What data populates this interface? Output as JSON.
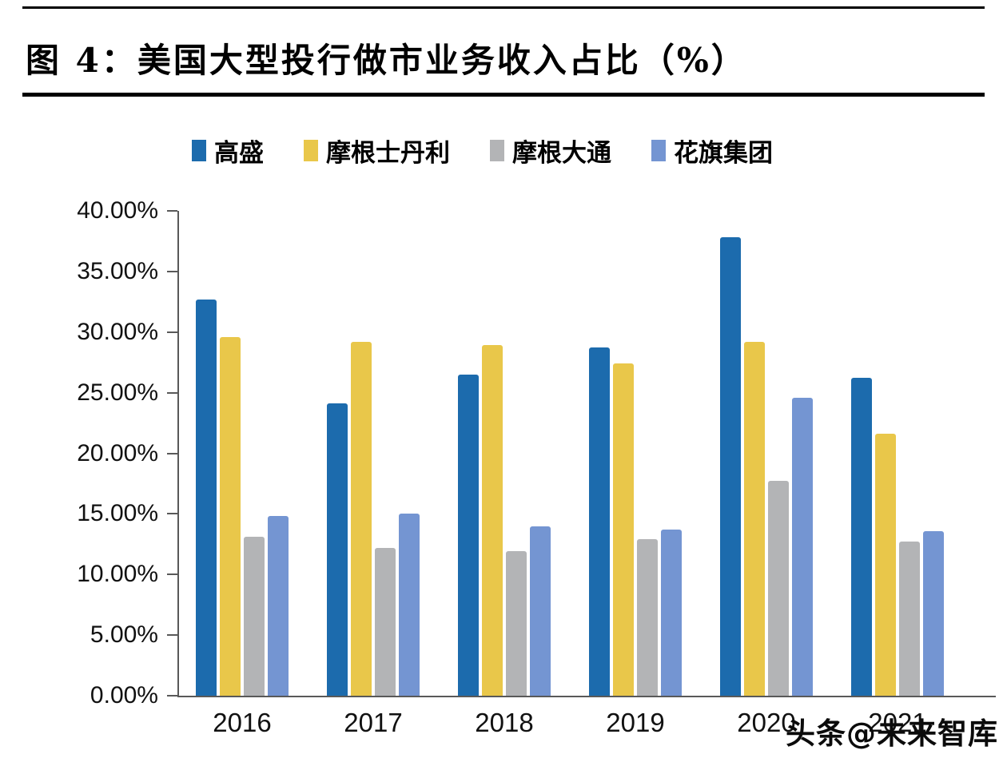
{
  "page": {
    "title": "图 4：美国大型投行做市业务收入占比（%）",
    "watermark": "头条@未来智库"
  },
  "chart_data": {
    "type": "bar",
    "title": "美国大型投行做市业务收入占比（%）",
    "categories": [
      "2016",
      "2017",
      "2018",
      "2019",
      "2020",
      "2021"
    ],
    "series": [
      {
        "name": "高盛",
        "color": "#1c6bad",
        "values": [
          32.7,
          24.1,
          26.5,
          28.7,
          37.8,
          26.2
        ]
      },
      {
        "name": "摩根士丹利",
        "color": "#e9c74a",
        "values": [
          29.6,
          29.2,
          28.9,
          27.4,
          29.2,
          21.6
        ]
      },
      {
        "name": "摩根大通",
        "color": "#b3b4b6",
        "values": [
          13.1,
          12.2,
          11.9,
          12.9,
          17.7,
          12.7
        ]
      },
      {
        "name": "花旗集团",
        "color": "#7495d2",
        "values": [
          14.8,
          15.0,
          14.0,
          13.7,
          24.6,
          13.6
        ]
      }
    ],
    "ylim": [
      0,
      40
    ],
    "y_ticks": [
      "40.00%",
      "35.00%",
      "30.00%",
      "25.00%",
      "20.00%",
      "15.00%",
      "10.00%",
      "5.00%",
      "0.00%"
    ],
    "xlabel": "",
    "ylabel": "",
    "grid": false,
    "legend_position": "top",
    "axis_color": "#595959"
  }
}
